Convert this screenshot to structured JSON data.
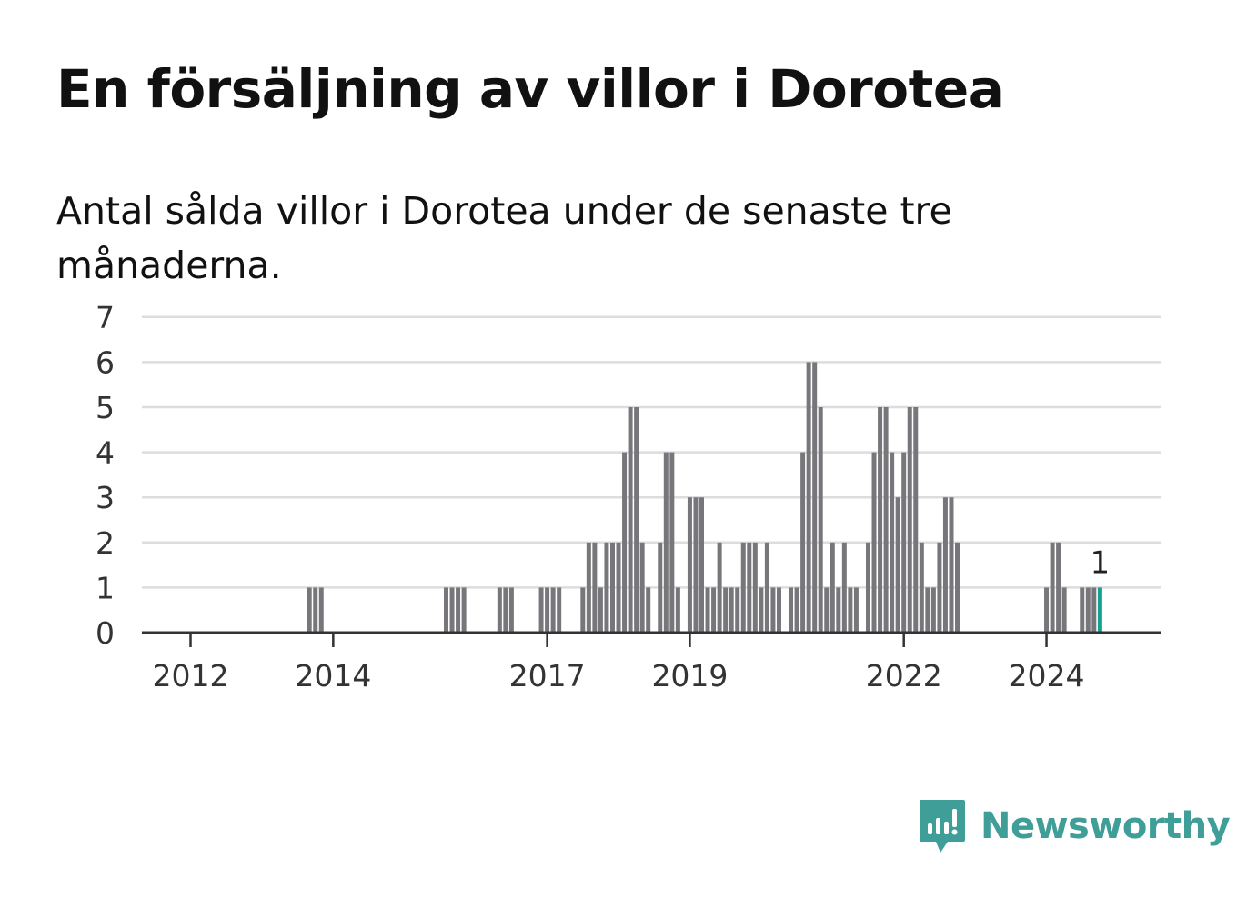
{
  "title": "En försäljning av villor i Dorotea",
  "subtitle": "Antal sålda villor i Dorotea under de senaste tre månaderna.",
  "brand": {
    "name": "Newsworthy",
    "icon": "newsworthy-logo-icon",
    "color": "#3f9e97"
  },
  "chart_data": {
    "type": "bar",
    "title": "En försäljning av villor i Dorotea",
    "subtitle": "Antal sålda villor i Dorotea under de senaste tre månaderna.",
    "xlabel": "",
    "ylabel": "",
    "ylim": [
      0,
      7
    ],
    "yticks": [
      "0",
      "1",
      "2",
      "3",
      "4",
      "5",
      "6",
      "7"
    ],
    "xticks": [
      {
        "label": "2012",
        "date": "2012-01"
      },
      {
        "label": "2014",
        "date": "2014-01"
      },
      {
        "label": "2017",
        "date": "2017-01"
      },
      {
        "label": "2019",
        "date": "2019-01"
      },
      {
        "label": "2022",
        "date": "2022-01"
      },
      {
        "label": "2024",
        "date": "2024-01"
      }
    ],
    "grid": true,
    "bar_color": "#77777b",
    "highlight_color": "#16a08f",
    "highlight_label": "1",
    "series": [
      {
        "data": [
          [
            "2013-09",
            1
          ],
          [
            "2013-10",
            1
          ],
          [
            "2013-11",
            1
          ],
          [
            "2015-08",
            1
          ],
          [
            "2015-09",
            1
          ],
          [
            "2015-10",
            1
          ],
          [
            "2015-11",
            1
          ],
          [
            "2016-05",
            1
          ],
          [
            "2016-06",
            1
          ],
          [
            "2016-07",
            1
          ],
          [
            "2016-12",
            1
          ],
          [
            "2017-01",
            1
          ],
          [
            "2017-02",
            1
          ],
          [
            "2017-03",
            1
          ],
          [
            "2017-07",
            1
          ],
          [
            "2017-08",
            2
          ],
          [
            "2017-09",
            2
          ],
          [
            "2017-10",
            1
          ],
          [
            "2017-11",
            2
          ],
          [
            "2017-12",
            2
          ],
          [
            "2018-01",
            2
          ],
          [
            "2018-02",
            4
          ],
          [
            "2018-03",
            5
          ],
          [
            "2018-04",
            5
          ],
          [
            "2018-05",
            2
          ],
          [
            "2018-06",
            1
          ],
          [
            "2018-08",
            2
          ],
          [
            "2018-09",
            4
          ],
          [
            "2018-10",
            4
          ],
          [
            "2018-11",
            1
          ],
          [
            "2019-01",
            3
          ],
          [
            "2019-02",
            3
          ],
          [
            "2019-03",
            3
          ],
          [
            "2019-04",
            1
          ],
          [
            "2019-05",
            1
          ],
          [
            "2019-06",
            2
          ],
          [
            "2019-07",
            1
          ],
          [
            "2019-08",
            1
          ],
          [
            "2019-09",
            1
          ],
          [
            "2019-10",
            2
          ],
          [
            "2019-11",
            2
          ],
          [
            "2019-12",
            2
          ],
          [
            "2020-01",
            1
          ],
          [
            "2020-02",
            2
          ],
          [
            "2020-03",
            1
          ],
          [
            "2020-04",
            1
          ],
          [
            "2020-06",
            1
          ],
          [
            "2020-07",
            1
          ],
          [
            "2020-08",
            4
          ],
          [
            "2020-09",
            6
          ],
          [
            "2020-10",
            6
          ],
          [
            "2020-11",
            5
          ],
          [
            "2020-12",
            1
          ],
          [
            "2021-01",
            2
          ],
          [
            "2021-02",
            1
          ],
          [
            "2021-03",
            2
          ],
          [
            "2021-04",
            1
          ],
          [
            "2021-05",
            1
          ],
          [
            "2021-07",
            2
          ],
          [
            "2021-08",
            4
          ],
          [
            "2021-09",
            5
          ],
          [
            "2021-10",
            5
          ],
          [
            "2021-11",
            4
          ],
          [
            "2021-12",
            3
          ],
          [
            "2022-01",
            4
          ],
          [
            "2022-02",
            5
          ],
          [
            "2022-03",
            5
          ],
          [
            "2022-04",
            2
          ],
          [
            "2022-05",
            1
          ],
          [
            "2022-06",
            1
          ],
          [
            "2022-07",
            2
          ],
          [
            "2022-08",
            3
          ],
          [
            "2022-09",
            3
          ],
          [
            "2022-10",
            2
          ],
          [
            "2024-01",
            1
          ],
          [
            "2024-02",
            2
          ],
          [
            "2024-03",
            2
          ],
          [
            "2024-04",
            1
          ],
          [
            "2024-07",
            1
          ],
          [
            "2024-08",
            1
          ],
          [
            "2024-09",
            1
          ],
          [
            "2024-10",
            1
          ]
        ]
      }
    ]
  }
}
